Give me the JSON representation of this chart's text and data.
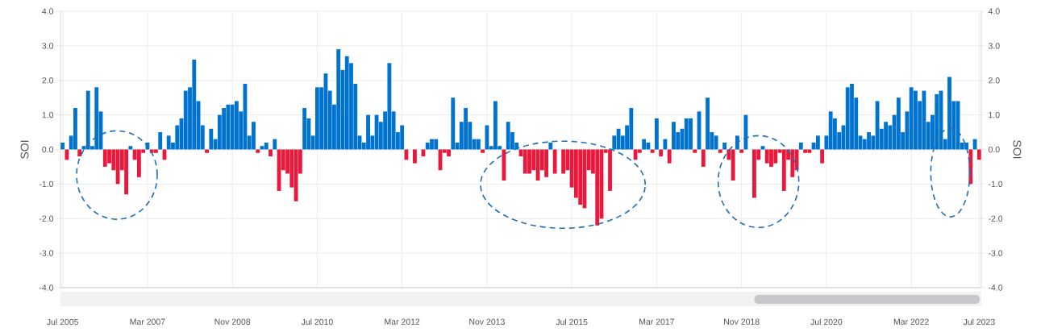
{
  "chart_data": {
    "type": "bar",
    "categories": [
      "Jul 2005",
      null,
      null,
      null,
      null,
      null,
      null,
      null,
      null,
      null,
      null,
      null,
      null,
      null,
      null,
      null,
      null,
      null,
      null,
      null,
      "Mar 2007",
      null,
      null,
      null,
      null,
      null,
      null,
      null,
      null,
      null,
      null,
      null,
      null,
      null,
      null,
      null,
      null,
      null,
      null,
      null,
      "Nov 2008",
      null,
      null,
      null,
      null,
      null,
      null,
      null,
      null,
      null,
      null,
      null,
      null,
      null,
      null,
      null,
      null,
      null,
      null,
      null,
      "Jul 2010",
      null,
      null,
      null,
      null,
      null,
      null,
      null,
      null,
      null,
      null,
      null,
      null,
      null,
      null,
      null,
      null,
      null,
      null,
      null,
      "Mar 2012",
      null,
      null,
      null,
      null,
      null,
      null,
      null,
      null,
      null,
      null,
      null,
      null,
      null,
      null,
      null,
      null,
      null,
      null,
      null,
      "Nov 2013",
      null,
      null,
      null,
      null,
      null,
      null,
      null,
      null,
      null,
      null,
      null,
      null,
      null,
      null,
      null,
      null,
      null,
      null,
      null,
      "Jul 2015",
      null,
      null,
      null,
      null,
      null,
      null,
      null,
      null,
      null,
      null,
      null,
      null,
      null,
      null,
      null,
      null,
      null,
      null,
      null,
      "Mar 2017",
      null,
      null,
      null,
      null,
      null,
      null,
      null,
      null,
      null,
      null,
      null,
      null,
      null,
      null,
      null,
      null,
      null,
      null,
      null,
      "Nov 2018",
      null,
      null,
      null,
      null,
      null,
      null,
      null,
      null,
      null,
      null,
      null,
      null,
      null,
      null,
      null,
      null,
      null,
      null,
      null,
      "Jul 2020",
      null,
      null,
      null,
      null,
      null,
      null,
      null,
      null,
      null,
      null,
      null,
      null,
      null,
      null,
      null,
      null,
      null,
      null,
      null,
      "Mar 2022",
      null,
      null,
      null,
      null,
      null,
      null,
      null,
      null,
      null,
      null,
      null,
      null,
      null,
      null,
      null,
      "Jul 2023"
    ],
    "values": [
      0.2,
      -0.3,
      0.4,
      1.2,
      -0.2,
      0.1,
      1.7,
      0.1,
      1.8,
      1.1,
      -0.5,
      -0.4,
      -0.6,
      -1.0,
      -0.6,
      -1.3,
      0.1,
      -0.3,
      -0.8,
      -0.1,
      0.2,
      -0.1,
      -0.1,
      0.5,
      -0.3,
      0.4,
      0.2,
      0.7,
      0.9,
      1.7,
      1.8,
      2.6,
      1.4,
      0.7,
      -0.1,
      0.6,
      0.3,
      1.0,
      1.2,
      1.3,
      1.3,
      1.4,
      1.1,
      1.9,
      0.4,
      0.8,
      -0.1,
      0.1,
      0.2,
      -0.2,
      0.3,
      -1.2,
      -0.6,
      -0.7,
      -1.1,
      -1.5,
      -0.7,
      1.2,
      0.9,
      0.4,
      1.8,
      1.8,
      2.2,
      1.7,
      1.3,
      2.9,
      2.3,
      2.7,
      2.5,
      1.9,
      0.4,
      0.2,
      1.0,
      0.4,
      1.0,
      0.8,
      1.1,
      2.5,
      1.1,
      0.5,
      0.7,
      -0.3,
      0,
      -0.4,
      0,
      -0.2,
      0.2,
      0.3,
      0.3,
      -0.6,
      -0.1,
      -0.2,
      1.5,
      0.2,
      0.8,
      1.2,
      0.8,
      0.3,
      0.3,
      -0.1,
      0.7,
      0.1,
      1.4,
      0.1,
      -0.9,
      0.8,
      0.5,
      0.2,
      -0.2,
      -0.7,
      -0.7,
      -0.6,
      -0.9,
      -0.6,
      -0.8,
      0.2,
      -0.7,
      0,
      -0.7,
      -0.6,
      -1.1,
      -1.4,
      -1.6,
      -1.7,
      -0.6,
      -0.7,
      -2.2,
      -2.0,
      -0.1,
      -1.2,
      0.4,
      0.6,
      0.4,
      0.7,
      1.2,
      -0.3,
      -0.1,
      0.3,
      0.2,
      -0.1,
      0.9,
      -0.2,
      0.3,
      -0.4,
      0.8,
      0.5,
      0.6,
      0.9,
      0.9,
      -0.1,
      1.1,
      -0.5,
      1.5,
      0.5,
      0.4,
      -0.1,
      0.2,
      -0.3,
      -0.9,
      0.4,
      -0.1,
      1.0,
      0,
      -1.4,
      -0.3,
      0.1,
      -0.4,
      -0.5,
      -0.4,
      -0.1,
      -1.2,
      -0.3,
      -0.8,
      -0.6,
      0.2,
      -0.1,
      -0.1,
      0.2,
      0.4,
      -0.4,
      0.4,
      1.1,
      0.9,
      0.5,
      0.7,
      1.8,
      1.9,
      1.5,
      0.4,
      0.3,
      0.5,
      0.4,
      1.4,
      0.6,
      0.8,
      0.7,
      1.0,
      1.5,
      0.5,
      1.1,
      1.8,
      1.7,
      1.4,
      1.7,
      0.8,
      1.0,
      1.6,
      1.7,
      0.3,
      2.1,
      1.4,
      1.4,
      0.2,
      0.2,
      -1.0,
      0.3,
      -0.3
    ],
    "colors": [
      "#0073cf",
      "#e8193c",
      "#0073cf",
      "#0073cf",
      "#e8193c",
      "#0073cf",
      "#0073cf",
      "#0073cf",
      "#0073cf",
      "#0073cf",
      "#e8193c",
      "#e8193c",
      "#e8193c",
      "#e8193c",
      "#e8193c",
      "#e8193c",
      "#0073cf",
      "#e8193c",
      "#e8193c",
      "#e8193c",
      "#0073cf",
      "#e8193c",
      "#e8193c",
      "#0073cf",
      "#e8193c",
      "#0073cf",
      "#0073cf",
      "#0073cf",
      "#0073cf",
      "#0073cf",
      "#0073cf",
      "#0073cf",
      "#0073cf",
      "#0073cf",
      "#e8193c",
      "#0073cf",
      "#0073cf",
      "#0073cf",
      "#0073cf",
      "#0073cf",
      "#0073cf",
      "#0073cf",
      "#0073cf",
      "#0073cf",
      "#0073cf",
      "#0073cf",
      "#e8193c",
      "#0073cf",
      "#0073cf",
      "#e8193c",
      "#0073cf",
      "#e8193c",
      "#e8193c",
      "#e8193c",
      "#e8193c",
      "#e8193c",
      "#e8193c",
      "#0073cf",
      "#0073cf",
      "#0073cf",
      "#0073cf",
      "#0073cf",
      "#0073cf",
      "#0073cf",
      "#0073cf",
      "#0073cf",
      "#0073cf",
      "#0073cf",
      "#0073cf",
      "#0073cf",
      "#0073cf",
      "#0073cf",
      "#0073cf",
      "#0073cf",
      "#0073cf",
      "#0073cf",
      "#0073cf",
      "#0073cf",
      "#0073cf",
      "#0073cf",
      "#0073cf",
      "#e8193c",
      "#0073cf",
      "#e8193c",
      "#0073cf",
      "#e8193c",
      "#0073cf",
      "#0073cf",
      "#0073cf",
      "#e8193c",
      "#e8193c",
      "#e8193c",
      "#0073cf",
      "#0073cf",
      "#0073cf",
      "#0073cf",
      "#0073cf",
      "#0073cf",
      "#0073cf",
      "#e8193c",
      "#0073cf",
      "#0073cf",
      "#0073cf",
      "#0073cf",
      "#e8193c",
      "#0073cf",
      "#0073cf",
      "#0073cf",
      "#e8193c",
      "#e8193c",
      "#e8193c",
      "#e8193c",
      "#e8193c",
      "#e8193c",
      "#e8193c",
      "#0073cf",
      "#e8193c",
      "#0073cf",
      "#e8193c",
      "#e8193c",
      "#e8193c",
      "#e8193c",
      "#e8193c",
      "#e8193c",
      "#e8193c",
      "#e8193c",
      "#e8193c",
      "#e8193c",
      "#e8193c",
      "#e8193c",
      "#0073cf",
      "#0073cf",
      "#0073cf",
      "#0073cf",
      "#0073cf",
      "#e8193c",
      "#e8193c",
      "#0073cf",
      "#0073cf",
      "#e8193c",
      "#0073cf",
      "#e8193c",
      "#0073cf",
      "#e8193c",
      "#0073cf",
      "#0073cf",
      "#0073cf",
      "#0073cf",
      "#0073cf",
      "#e8193c",
      "#0073cf",
      "#e8193c",
      "#0073cf",
      "#0073cf",
      "#0073cf",
      "#e8193c",
      "#0073cf",
      "#e8193c",
      "#e8193c",
      "#0073cf",
      "#e8193c",
      "#0073cf",
      "#0073cf",
      "#e8193c",
      "#e8193c",
      "#0073cf",
      "#e8193c",
      "#e8193c",
      "#e8193c",
      "#e8193c",
      "#e8193c",
      "#e8193c",
      "#e8193c",
      "#e8193c",
      "#0073cf",
      "#e8193c",
      "#e8193c",
      "#0073cf",
      "#0073cf",
      "#e8193c",
      "#0073cf",
      "#0073cf",
      "#0073cf",
      "#0073cf",
      "#0073cf",
      "#0073cf",
      "#0073cf",
      "#0073cf",
      "#0073cf",
      "#0073cf",
      "#0073cf",
      "#0073cf",
      "#0073cf",
      "#0073cf",
      "#0073cf",
      "#0073cf",
      "#0073cf",
      "#0073cf",
      "#0073cf",
      "#0073cf",
      "#0073cf",
      "#0073cf",
      "#0073cf",
      "#0073cf",
      "#0073cf",
      "#0073cf",
      "#0073cf",
      "#0073cf",
      "#0073cf",
      "#0073cf",
      "#0073cf",
      "#0073cf",
      "#0073cf",
      "#0073cf",
      "#e8193c",
      "#0073cf",
      "#e8193c"
    ],
    "ylabel": "SOI",
    "y2label": "SOI",
    "ylim": [
      -4,
      4
    ],
    "yticks": [
      {
        "value": -4,
        "label": "-4.0"
      },
      {
        "value": -3,
        "label": "-3.0"
      },
      {
        "value": -2,
        "label": "-2.0"
      },
      {
        "value": -1,
        "label": "-1.0"
      },
      {
        "value": 0,
        "label": "0.0"
      },
      {
        "value": 1,
        "label": "1.0"
      },
      {
        "value": 2,
        "label": "2.0"
      },
      {
        "value": 3,
        "label": "3.0"
      },
      {
        "value": 4,
        "label": "4.0"
      }
    ],
    "y2lim": [
      -4,
      4
    ],
    "y2ticks": [
      {
        "value": -4,
        "label": "-4.0"
      },
      {
        "value": -3,
        "label": "-3.0"
      },
      {
        "value": -2,
        "label": "-2.0"
      },
      {
        "value": -1,
        "label": "-1.0"
      },
      {
        "value": 0,
        "label": "0.0"
      },
      {
        "value": 1,
        "label": "1.0"
      },
      {
        "value": 2,
        "label": "2.0"
      },
      {
        "value": 3,
        "label": "3.0"
      },
      {
        "value": 4,
        "label": "4.0"
      }
    ],
    "grid": true
  }
}
